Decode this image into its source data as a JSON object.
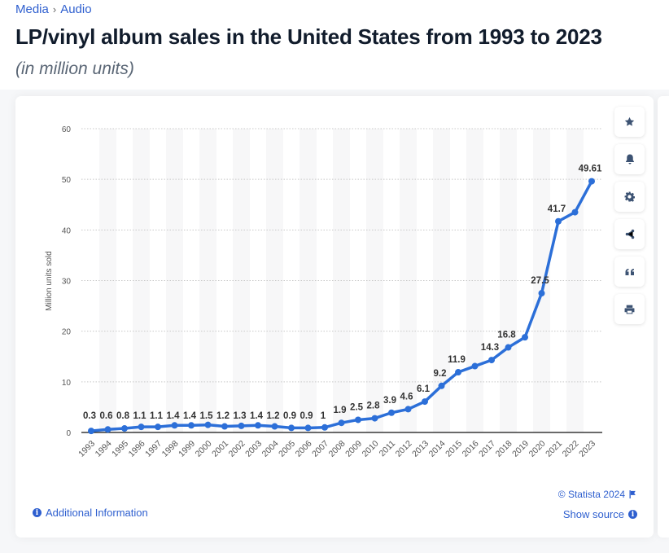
{
  "breadcrumb": [
    "Media",
    "Audio"
  ],
  "breadcrumb_sep": "›",
  "title": "LP/vinyl album sales in the United States from 1993 to 2023",
  "subtitle": "(in million units)",
  "sidebar": [
    {
      "name": "favorite",
      "icon": "star-icon"
    },
    {
      "name": "notify",
      "icon": "bell-icon"
    },
    {
      "name": "settings",
      "icon": "gear-icon"
    },
    {
      "name": "share",
      "icon": "share-icon"
    },
    {
      "name": "cite",
      "icon": "quote-icon"
    },
    {
      "name": "print",
      "icon": "print-icon"
    }
  ],
  "footer": {
    "additional_info": "Additional Information",
    "copyright": "© Statista 2024",
    "show_source": "Show source"
  },
  "colors": {
    "line": "#2c6fd8",
    "accent": "#2e5fcf",
    "icon": "#3d5373"
  },
  "chart_data": {
    "type": "line",
    "title": "LP/vinyl album sales in the United States from 1993 to 2023",
    "subtitle": "(in million units)",
    "xlabel": "",
    "ylabel": "Million units sold",
    "ylim": [
      0,
      60
    ],
    "yticks": [
      0,
      10,
      20,
      30,
      40,
      50,
      60
    ],
    "grid": true,
    "categories": [
      "1993",
      "1994",
      "1995",
      "1996",
      "1997",
      "1998",
      "1999",
      "2000",
      "2001",
      "2002",
      "2003",
      "2004",
      "2005",
      "2006",
      "2007",
      "2008",
      "2009",
      "2010",
      "2011",
      "2012",
      "2013",
      "2014",
      "2015",
      "2016",
      "2017",
      "2018",
      "2019",
      "2020",
      "2021",
      "2022",
      "2023"
    ],
    "series": [
      {
        "name": "LP/vinyl album sales",
        "values": [
          0.3,
          0.6,
          0.8,
          1.1,
          1.1,
          1.4,
          1.4,
          1.5,
          1.2,
          1.3,
          1.4,
          1.2,
          0.9,
          0.9,
          1,
          1.9,
          2.5,
          2.8,
          3.9,
          4.6,
          6.1,
          9.2,
          11.9,
          13.1,
          14.3,
          16.8,
          18.8,
          27.5,
          41.7,
          43.5,
          49.61
        ],
        "labels": [
          "0.3",
          "0.6",
          "0.8",
          "1.1",
          "1.1",
          "1.4",
          "1.4",
          "1.5",
          "1.2",
          "1.3",
          "1.4",
          "1.2",
          "0.9",
          "0.9",
          "1",
          "1.9",
          "2.5",
          "2.8",
          "3.9",
          "4.6",
          "6.1",
          "9.2",
          "11.9",
          "",
          "14.3",
          "16.8",
          "",
          "27.5",
          "41.7",
          "",
          "49.61"
        ]
      }
    ]
  }
}
